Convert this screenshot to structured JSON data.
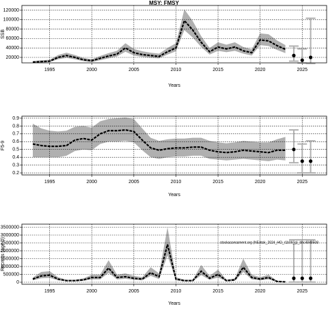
{
  "chart_data": [
    {
      "type": "line",
      "title": "MSY: FMSY",
      "ylabel": "SSB",
      "xlabel": "Years",
      "x": [
        1993,
        1994,
        1995,
        1996,
        1997,
        1998,
        1999,
        2000,
        2001,
        2002,
        2003,
        2004,
        2005,
        2006,
        2007,
        2008,
        2009,
        2010,
        2011,
        2012,
        2013,
        2014,
        2015,
        2016,
        2017,
        2018,
        2019,
        2020,
        2021,
        2022,
        2023
      ],
      "values": [
        10000,
        11000,
        12000,
        20000,
        24000,
        20000,
        15000,
        13000,
        18000,
        23000,
        27000,
        40000,
        30000,
        26000,
        24000,
        22000,
        32000,
        40000,
        98000,
        78000,
        52000,
        32000,
        42000,
        38000,
        42000,
        34000,
        30000,
        57000,
        55000,
        45000,
        37000
      ],
      "lower": [
        8000,
        9000,
        10000,
        16000,
        19000,
        16000,
        12000,
        10000,
        14000,
        18000,
        22000,
        32000,
        24000,
        21000,
        19000,
        18000,
        26000,
        33000,
        78000,
        62000,
        42000,
        26000,
        34000,
        31000,
        34000,
        28000,
        24000,
        46000,
        44000,
        36000,
        29000
      ],
      "upper": [
        12000,
        14000,
        15000,
        25000,
        30000,
        25000,
        19000,
        16000,
        23000,
        29000,
        34000,
        50000,
        38000,
        33000,
        30000,
        28000,
        40000,
        50000,
        122000,
        97000,
        65000,
        40000,
        52000,
        47000,
        52000,
        42000,
        37000,
        71000,
        69000,
        56000,
        46000
      ],
      "forecast": {
        "x": [
          2024,
          2025,
          2026
        ],
        "values": [
          24000,
          14000,
          20000
        ],
        "lower": [
          12000,
          8000,
          7000
        ],
        "upper": [
          44000,
          38000,
          103000
        ]
      },
      "xlim": [
        1991.7,
        2027.9
      ],
      "ylim": [
        8400,
        130100
      ],
      "xticks": [
        1995,
        2000,
        2005,
        2010,
        2015,
        2020,
        2025
      ],
      "yticks": [
        20000,
        40000,
        60000,
        80000,
        100000,
        120000
      ],
      "grid": true
    },
    {
      "type": "line",
      "ylabel": "F5-9",
      "xlabel": "Years",
      "x": [
        1993,
        1994,
        1995,
        1996,
        1997,
        1998,
        1999,
        2000,
        2001,
        2002,
        2003,
        2004,
        2005,
        2006,
        2007,
        2008,
        2009,
        2010,
        2011,
        2012,
        2013,
        2014,
        2015,
        2016,
        2017,
        2018,
        2019,
        2020,
        2021,
        2022,
        2023
      ],
      "values": [
        0.57,
        0.55,
        0.54,
        0.54,
        0.55,
        0.62,
        0.64,
        0.62,
        0.7,
        0.74,
        0.74,
        0.75,
        0.73,
        0.62,
        0.52,
        0.49,
        0.51,
        0.52,
        0.52,
        0.53,
        0.53,
        0.49,
        0.47,
        0.46,
        0.47,
        0.49,
        0.48,
        0.47,
        0.46,
        0.49,
        0.49
      ],
      "lower": [
        0.4,
        0.4,
        0.4,
        0.4,
        0.42,
        0.48,
        0.5,
        0.49,
        0.57,
        0.6,
        0.6,
        0.61,
        0.59,
        0.49,
        0.4,
        0.38,
        0.4,
        0.41,
        0.41,
        0.42,
        0.42,
        0.38,
        0.37,
        0.36,
        0.37,
        0.38,
        0.37,
        0.36,
        0.35,
        0.37,
        0.36
      ],
      "upper": [
        0.83,
        0.77,
        0.74,
        0.73,
        0.74,
        0.79,
        0.8,
        0.78,
        0.86,
        0.89,
        0.9,
        0.91,
        0.89,
        0.77,
        0.65,
        0.61,
        0.63,
        0.64,
        0.64,
        0.65,
        0.65,
        0.61,
        0.59,
        0.58,
        0.59,
        0.61,
        0.6,
        0.59,
        0.59,
        0.63,
        0.66
      ],
      "forecast": {
        "x": [
          2024,
          2025,
          2026
        ],
        "values": [
          0.5,
          0.35,
          0.35
        ],
        "lower": [
          0.33,
          0.2,
          0.2
        ],
        "upper": [
          0.75,
          0.57,
          0.61
        ]
      },
      "xlim": [
        1991.7,
        2027.9
      ],
      "ylim": [
        0.174,
        0.926
      ],
      "xticks": [
        1995,
        2000,
        2005,
        2010,
        2015,
        2020,
        2025
      ],
      "yticks": [
        0.2,
        0.3,
        0.4,
        0.5,
        0.6,
        0.7,
        0.8,
        0.9
      ],
      "grid": true
    },
    {
      "type": "line",
      "ylabel": "Recruits (age 0)",
      "xlabel": "Years",
      "annotation": "stockassessment.org (NEAtsk_2024_HO_r1b09_g)_bhc4848508",
      "x": [
        1993,
        1994,
        1995,
        1996,
        1997,
        1998,
        1999,
        2000,
        2001,
        2002,
        2003,
        2004,
        2005,
        2006,
        2007,
        2008,
        2009,
        2010,
        2011,
        2012,
        2013,
        2014,
        2015,
        2016,
        2017,
        2018,
        2019,
        2020,
        2021,
        2022,
        2023
      ],
      "values": [
        200000,
        400000,
        450000,
        200000,
        100000,
        100000,
        150000,
        300000,
        300000,
        900000,
        300000,
        350000,
        250000,
        200000,
        600000,
        350000,
        2400000,
        200000,
        100000,
        100000,
        700000,
        250000,
        500000,
        100000,
        150000,
        950000,
        300000,
        200000,
        300000,
        50000,
        20000
      ],
      "lower": [
        120000,
        250000,
        280000,
        120000,
        60000,
        60000,
        90000,
        180000,
        180000,
        600000,
        180000,
        220000,
        150000,
        120000,
        400000,
        200000,
        1700000,
        120000,
        60000,
        60000,
        450000,
        150000,
        300000,
        60000,
        90000,
        650000,
        180000,
        120000,
        180000,
        20000,
        5000
      ],
      "upper": [
        300000,
        650000,
        700000,
        320000,
        160000,
        160000,
        240000,
        480000,
        480000,
        1400000,
        480000,
        560000,
        400000,
        320000,
        950000,
        560000,
        3500000,
        320000,
        160000,
        160000,
        1100000,
        400000,
        800000,
        160000,
        240000,
        1500000,
        480000,
        320000,
        480000,
        100000,
        50000
      ],
      "forecast": {
        "x": [
          2024,
          2025,
          2026
        ],
        "values": [
          250000,
          250000,
          250000
        ],
        "lower": [
          10000,
          10000,
          10000
        ],
        "upper": [
          2700000,
          2700000,
          2700000
        ]
      },
      "xlim": [
        1991.7,
        2027.9
      ],
      "ylim": [
        -130000,
        3696000
      ],
      "xticks": [
        1995,
        2000,
        2005,
        2010,
        2015,
        2020,
        2025
      ],
      "yticks": [
        0,
        500000,
        1000000,
        1500000,
        2000000,
        2500000,
        3000000,
        3500000
      ],
      "grid": true
    }
  ]
}
